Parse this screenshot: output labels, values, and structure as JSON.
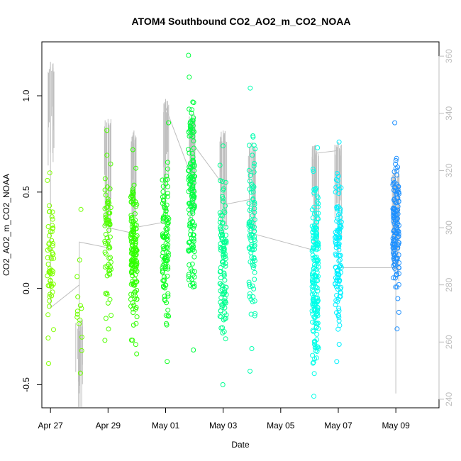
{
  "chart_data": {
    "type": "scatter",
    "title": "ATOM4 Southbound CO2_AO2_m_CO2_NOAA",
    "xlabel": "Date",
    "ylabel": "CO2_AO2_m_CO2_NOAA",
    "xlim": [
      -0.3,
      13.5
    ],
    "ylim": [
      -0.62,
      1.28
    ],
    "y2lim": [
      237,
      365
    ],
    "x_ticks": [
      {
        "pos": 0,
        "label": "Apr 27"
      },
      {
        "pos": 2,
        "label": "Apr 29"
      },
      {
        "pos": 4,
        "label": "May 01"
      },
      {
        "pos": 6,
        "label": "May 03"
      },
      {
        "pos": 8,
        "label": "May 05"
      },
      {
        "pos": 10,
        "label": "May 07"
      },
      {
        "pos": 12,
        "label": "May 09"
      }
    ],
    "y_ticks": [
      {
        "value": -0.5,
        "label": "-0.5"
      },
      {
        "value": 0.0,
        "label": "0.0"
      },
      {
        "value": 0.5,
        "label": "0.5"
      },
      {
        "value": 1.0,
        "label": "1.0"
      }
    ],
    "y2_ticks": [
      {
        "value": 240,
        "label": "240"
      },
      {
        "value": 260,
        "label": "260"
      },
      {
        "value": 280,
        "label": "280"
      },
      {
        "value": 300,
        "label": "300"
      },
      {
        "value": 320,
        "label": "320"
      },
      {
        "value": 340,
        "label": "340"
      },
      {
        "value": 360,
        "label": "360"
      }
    ],
    "grid": false,
    "legend": "none",
    "colors": {
      "early": "#7cfc00",
      "mid": "#00ff40",
      "cyan": "#00ffd0",
      "late": "#1e90ff",
      "background_line": "#bebebe"
    },
    "clusters": [
      {
        "x": 0.0,
        "ymin": -0.39,
        "ymax": 0.6,
        "n": 60,
        "color": "#80ff00"
      },
      {
        "x": 1.0,
        "ymin": -0.44,
        "ymax": 0.41,
        "n": 14,
        "color": "#70ff00"
      },
      {
        "x": 2.0,
        "ymin": -0.27,
        "ymax": 0.82,
        "n": 70,
        "color": "#50ff00"
      },
      {
        "x": 2.9,
        "ymin": -0.34,
        "ymax": 0.72,
        "n": 150,
        "color": "#30ff00"
      },
      {
        "x": 4.0,
        "ymin": -0.38,
        "ymax": 0.86,
        "n": 110,
        "color": "#10ff20"
      },
      {
        "x": 4.9,
        "ymin": -0.32,
        "ymax": 1.21,
        "n": 150,
        "color": "#00ff40"
      },
      {
        "x": 6.0,
        "ymin": -0.5,
        "ymax": 0.74,
        "n": 110,
        "color": "#00ff90"
      },
      {
        "x": 7.0,
        "ymin": -0.43,
        "ymax": 1.04,
        "n": 90,
        "color": "#00ffb0"
      },
      {
        "x": 9.2,
        "ymin": -0.56,
        "ymax": 0.73,
        "n": 190,
        "color": "#00ffe8"
      },
      {
        "x": 10.0,
        "ymin": -0.38,
        "ymax": 0.76,
        "n": 110,
        "color": "#00f0ff"
      },
      {
        "x": 12.0,
        "ymin": -0.21,
        "ymax": 0.86,
        "n": 140,
        "color": "#1e90ff"
      }
    ],
    "co2_profile": [
      {
        "x": 0.0,
        "y2": 278
      },
      {
        "x": 0.0,
        "y2": 358
      },
      {
        "x": 0.0,
        "y2": 272
      },
      {
        "x": 1.0,
        "y2": 280
      },
      {
        "x": 1.0,
        "y2": 268
      },
      {
        "x": 1.0,
        "y2": 295
      },
      {
        "x": 2.0,
        "y2": 293
      },
      {
        "x": 2.0,
        "y2": 338
      },
      {
        "x": 2.0,
        "y2": 300
      },
      {
        "x": 2.9,
        "y2": 298
      },
      {
        "x": 2.9,
        "y2": 334
      },
      {
        "x": 2.9,
        "y2": 300
      },
      {
        "x": 4.0,
        "y2": 302
      },
      {
        "x": 4.0,
        "y2": 345
      },
      {
        "x": 4.0,
        "y2": 342
      },
      {
        "x": 4.9,
        "y2": 318
      },
      {
        "x": 4.9,
        "y2": 340
      },
      {
        "x": 4.9,
        "y2": 330
      },
      {
        "x": 6.0,
        "y2": 315
      },
      {
        "x": 6.0,
        "y2": 334
      },
      {
        "x": 6.0,
        "y2": 308
      },
      {
        "x": 7.0,
        "y2": 310
      },
      {
        "x": 7.0,
        "y2": 330
      },
      {
        "x": 7.0,
        "y2": 298
      },
      {
        "x": 9.2,
        "y2": 292
      },
      {
        "x": 9.2,
        "y2": 329
      },
      {
        "x": 9.2,
        "y2": 326
      },
      {
        "x": 10.0,
        "y2": 327
      },
      {
        "x": 10.0,
        "y2": 330
      },
      {
        "x": 10.0,
        "y2": 286
      },
      {
        "x": 12.0,
        "y2": 286
      },
      {
        "x": 12.0,
        "y2": 320
      },
      {
        "x": 12.0,
        "y2": 242
      }
    ]
  }
}
